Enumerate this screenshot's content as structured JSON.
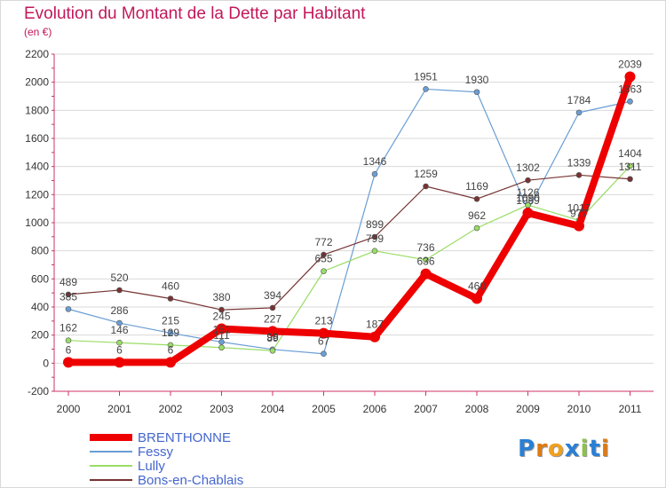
{
  "header": {
    "title": "Evolution du Montant de la Dette par Habitant",
    "subtitle": "(en €)"
  },
  "colors": {
    "title": "#c2185b",
    "axis": "#cc3366",
    "grid": "#d9d9d9",
    "background": "#ffffff"
  },
  "logo": {
    "text": "Proxiti",
    "letter_colors": [
      "#2a7fd4",
      "#e07a10",
      "#f0a020",
      "#2a7fd4",
      "#8bc34a",
      "#2a7fd4",
      "#e07a10"
    ]
  },
  "chart_data": {
    "type": "line",
    "title": "Evolution du Montant de la Dette par Habitant",
    "subtitle": "(en €)",
    "xlabel": "",
    "ylabel": "",
    "x": [
      "2000",
      "2001",
      "2002",
      "2003",
      "2004",
      "2005",
      "2006",
      "2007",
      "2008",
      "2009",
      "2010",
      "2011"
    ],
    "y_ticks": [
      "-200",
      "0",
      "200",
      "400",
      "600",
      "800",
      "1000",
      "1200",
      "1400",
      "1600",
      "1800",
      "2000",
      "2200"
    ],
    "ylim": [
      -200,
      2200
    ],
    "grid": true,
    "legend_position": "bottom-left",
    "series": [
      {
        "name": "BRENTHONNE",
        "color": "#ee0000",
        "width": 8,
        "values": [
          6,
          6,
          6,
          245,
          227,
          213,
          187,
          636,
          460,
          1069,
          977,
          2039
        ],
        "labels": [
          "6",
          "6",
          "6",
          "245",
          "227",
          "213",
          "187",
          "636",
          "460",
          "1069",
          "977",
          "2039"
        ]
      },
      {
        "name": "Fessy",
        "color": "#6a9ed4",
        "width": 1.2,
        "values": [
          385,
          286,
          215,
          151,
          98,
          67,
          1346,
          1951,
          1930,
          1090,
          1784,
          1863
        ],
        "labels": [
          "385",
          "286",
          "215",
          "151",
          "98",
          "67",
          "1346",
          "1951",
          "1930",
          "1090",
          "1784",
          "1863"
        ]
      },
      {
        "name": "Lully",
        "color": "#99dd66",
        "width": 1.2,
        "values": [
          162,
          146,
          129,
          111,
          89,
          655,
          799,
          736,
          962,
          1126,
          1017,
          1404
        ],
        "labels": [
          "162",
          "146",
          "129",
          "111",
          "89",
          "655",
          "799",
          "736",
          "962",
          "1126",
          "1017",
          "1404"
        ]
      },
      {
        "name": "Bons-en-Chablais",
        "color": "#773333",
        "width": 1.2,
        "values": [
          489,
          520,
          460,
          380,
          394,
          772,
          899,
          1259,
          1169,
          1302,
          1339,
          1311
        ],
        "labels": [
          "489",
          "520",
          "460",
          "380",
          "394",
          "772",
          "899",
          "1259",
          "1169",
          "1302",
          "1339",
          "1311"
        ]
      }
    ]
  }
}
